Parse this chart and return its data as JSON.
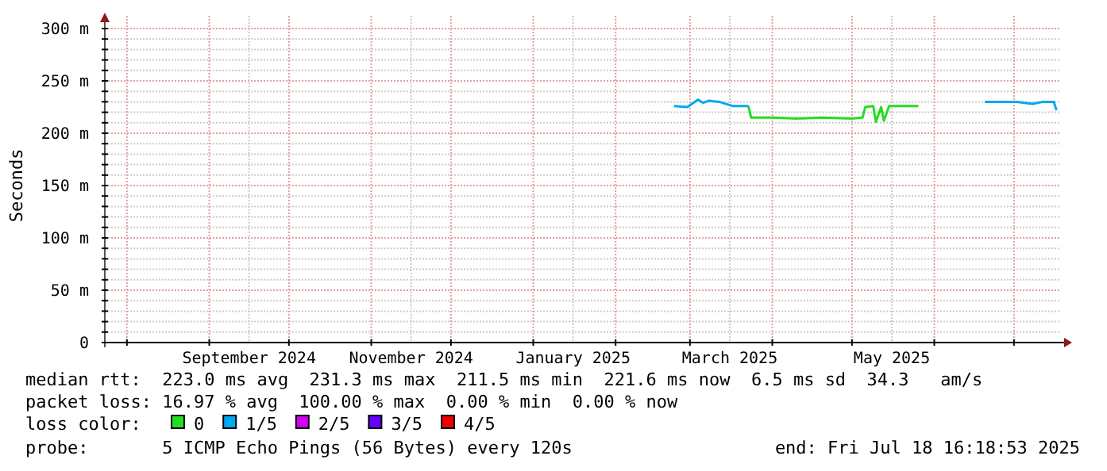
{
  "chart_data": {
    "type": "line",
    "ylabel": "Seconds",
    "legend_title": "loss color:",
    "legend": "bottom left",
    "grid": true,
    "marker": "none",
    "line_style": "solid",
    "xlim": [
      "2024-07-23T16:18",
      "2025-07-18T16:18"
    ],
    "xticks": [
      {
        "value": "2024-08-01",
        "label": null
      },
      {
        "value": "2024-09-01",
        "label": null
      },
      {
        "value": "2024-09-16",
        "label": "September 2024"
      },
      {
        "value": "2024-10-01",
        "label": null
      },
      {
        "value": "2024-11-01",
        "label": null
      },
      {
        "value": "2024-11-16",
        "label": "November 2024"
      },
      {
        "value": "2024-12-01",
        "label": null
      },
      {
        "value": "2025-01-01",
        "label": null
      },
      {
        "value": "2025-01-16",
        "label": "January 2025"
      },
      {
        "value": "2025-02-01",
        "label": null
      },
      {
        "value": "2025-03-01",
        "label": null
      },
      {
        "value": "2025-03-16",
        "label": "March 2025"
      },
      {
        "value": "2025-04-01",
        "label": null
      },
      {
        "value": "2025-05-01",
        "label": null
      },
      {
        "value": "2025-05-16",
        "label": "May 2025"
      },
      {
        "value": "2025-06-01",
        "label": null
      },
      {
        "value": "2025-07-01",
        "label": null
      }
    ],
    "ylim": [
      0,
      300
    ],
    "yticks": [
      0,
      {
        "value": 10,
        "label": null
      },
      {
        "value": 20,
        "label": null
      },
      {
        "value": 30,
        "label": null
      },
      {
        "value": 40,
        "label": null
      },
      {
        "value": 50,
        "label": "50 m"
      },
      {
        "value": 60,
        "label": null
      },
      {
        "value": 70,
        "label": null
      },
      {
        "value": 80,
        "label": null
      },
      {
        "value": 90,
        "label": null
      },
      {
        "value": 100,
        "label": "100 m"
      },
      {
        "value": 110,
        "label": null
      },
      {
        "value": 120,
        "label": null
      },
      {
        "value": 130,
        "label": null
      },
      {
        "value": 140,
        "label": null
      },
      {
        "value": 150,
        "label": "150 m"
      },
      {
        "value": 160,
        "label": null
      },
      {
        "value": 170,
        "label": null
      },
      {
        "value": 180,
        "label": null
      },
      {
        "value": 190,
        "label": null
      },
      {
        "value": 200,
        "label": "200 m"
      },
      {
        "value": 210,
        "label": null
      },
      {
        "value": 220,
        "label": null
      },
      {
        "value": 230,
        "label": null
      },
      {
        "value": 240,
        "label": null
      },
      {
        "value": 250,
        "label": "250 m"
      },
      {
        "value": 260,
        "label": null
      },
      {
        "value": 270,
        "label": null
      },
      {
        "value": 280,
        "label": null
      },
      {
        "value": 290,
        "label": null
      },
      {
        "value": 300,
        "label": "300 m"
      }
    ],
    "x": [
      "2025-02-23",
      "2025-02-28",
      "2025-03-04",
      "2025-03-06",
      "2025-03-08",
      "2025-03-12",
      "2025-03-17",
      "2025-03-23",
      "2025-03-24",
      "2025-04-01",
      "2025-04-10",
      "2025-04-20",
      "2025-05-01",
      "2025-05-05",
      "2025-05-06",
      "2025-05-09",
      "2025-05-10",
      "2025-05-12",
      "2025-05-13",
      "2025-05-15",
      "2025-05-26",
      "2025-06-20",
      "2025-07-02",
      "2025-07-08",
      "2025-07-12",
      "2025-07-16",
      "2025-07-17"
    ],
    "series": [
      {
        "name": "0",
        "color": "#22dd22",
        "values": [
          null,
          null,
          null,
          null,
          null,
          null,
          null,
          226,
          215,
          215,
          214,
          215,
          214,
          215,
          225,
          226,
          211,
          225,
          212,
          226,
          226,
          null,
          null,
          null,
          null,
          null,
          null
        ]
      },
      {
        "name": "1/5",
        "color": "#00a8f0",
        "values": [
          226,
          225,
          232,
          229,
          231,
          230,
          226,
          226,
          null,
          null,
          null,
          null,
          null,
          null,
          null,
          null,
          null,
          null,
          null,
          null,
          null,
          230,
          230,
          228,
          230,
          230,
          222
        ]
      },
      {
        "name": "2/5",
        "color": "#d000f0",
        "values": [
          null,
          null,
          null,
          null,
          null,
          null,
          null,
          null,
          null,
          null,
          null,
          null,
          null,
          null,
          null,
          null,
          null,
          null,
          null,
          null,
          null,
          null,
          null,
          null,
          null,
          null,
          null
        ]
      },
      {
        "name": "3/5",
        "color": "#6600ff",
        "values": [
          null,
          null,
          null,
          null,
          null,
          null,
          null,
          null,
          null,
          null,
          null,
          null,
          null,
          null,
          null,
          null,
          null,
          null,
          null,
          null,
          null,
          null,
          null,
          null,
          null,
          null,
          null
        ]
      },
      {
        "name": "4/5",
        "color": "#ee0000",
        "values": [
          null,
          null,
          null,
          null,
          null,
          null,
          null,
          null,
          null,
          null,
          null,
          null,
          null,
          null,
          null,
          null,
          null,
          null,
          null,
          null,
          null,
          null,
          null,
          null,
          null,
          null,
          null
        ]
      }
    ],
    "annotations": [
      "median rtt:  223.0 ms avg  231.3 ms max  211.5 ms min  221.6 ms now  6.5 ms sd  34.3   am/s",
      "packet loss: 16.97 % avg  100.00 % max  0.00 % min  0.00 % now",
      "probe:       5 ICMP Echo Pings (56 Bytes) every 120s",
      "end: Fri Jul 18 16:18:53 2025"
    ]
  }
}
